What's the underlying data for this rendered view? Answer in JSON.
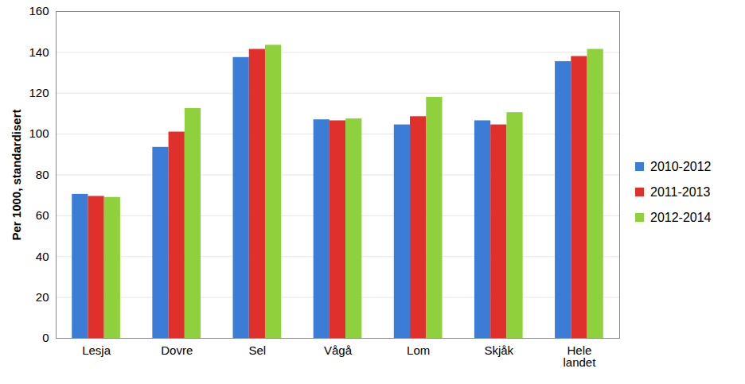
{
  "chart_data": {
    "type": "bar",
    "y_label": "Per 1000, standardisert",
    "categories": [
      "Lesja",
      "Dovre",
      "Sel",
      "Vågå",
      "Lom",
      "Skjåk",
      "Hele landet"
    ],
    "series": [
      {
        "name": "2010-2012",
        "color": "#3b7dd6",
        "values": [
          70.5,
          93.5,
          137.5,
          107,
          104.5,
          106.5,
          135.5
        ]
      },
      {
        "name": "2011-2013",
        "color": "#e0302c",
        "values": [
          69.5,
          101,
          141.5,
          106.5,
          108.5,
          104.5,
          138
        ]
      },
      {
        "name": "2012-2014",
        "color": "#8fd13c",
        "values": [
          69,
          112.5,
          143.5,
          107.5,
          118,
          110.5,
          141.5
        ]
      }
    ],
    "ylim": [
      0,
      160
    ],
    "yticks": [
      0,
      20,
      40,
      60,
      80,
      100,
      120,
      140,
      160
    ],
    "grid": true,
    "legend": "right"
  }
}
